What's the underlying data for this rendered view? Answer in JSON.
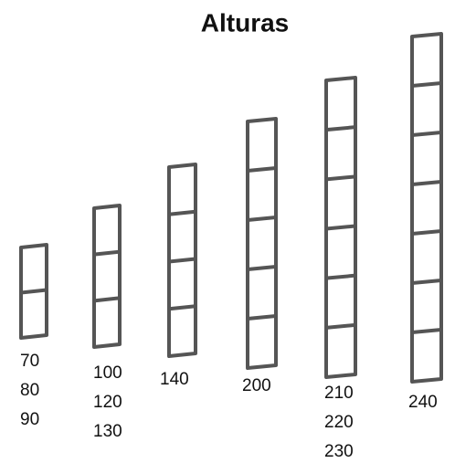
{
  "title": "Alturas",
  "towers": [
    {
      "labels": [
        "70",
        "80",
        "90"
      ]
    },
    {
      "labels": [
        "100",
        "120",
        "130"
      ]
    },
    {
      "labels": [
        "140"
      ]
    },
    {
      "labels": [
        "200"
      ]
    },
    {
      "labels": [
        "210",
        "220",
        "230"
      ]
    },
    {
      "labels": [
        "240"
      ]
    }
  ]
}
